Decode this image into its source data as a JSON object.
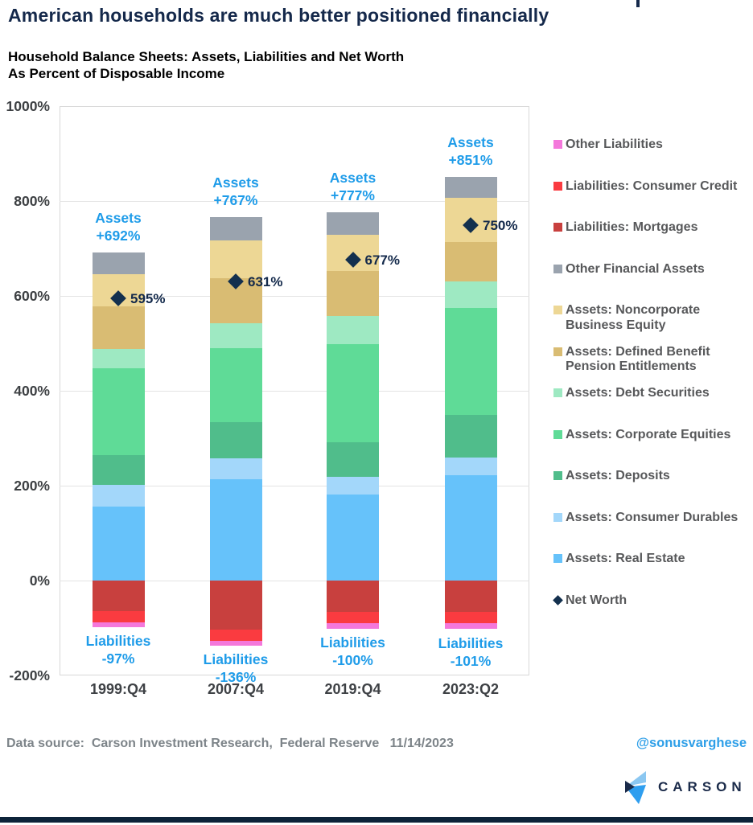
{
  "header": {
    "title": "American households are much better positioned financially",
    "subtitle_line1": "Household Balance Sheets: Assets, Liabilities and Net Worth",
    "subtitle_line2": "As Percent of Disposable Income"
  },
  "footer": {
    "source": "Data source:  Carson Investment Research,  Federal Reserve   11/14/2023",
    "handle": "@sonusvarghese",
    "logo_text": "CARSON"
  },
  "colors": {
    "real_estate": "#66C2FA",
    "consumer_durables": "#A3D7FA",
    "deposits": "#50BD8B",
    "corporate_equities": "#5FDB97",
    "debt_securities": "#9EE9C2",
    "defined_benefit": "#D9BC73",
    "noncorporate": "#EDD795",
    "other_financial": "#9AA3AE",
    "mortgages": "#C8403E",
    "consumer_credit": "#FA3B40",
    "other_liabilities": "#F478DB",
    "net_worth": "#13304E",
    "label_blue": "#1F9CE9",
    "title_navy": "#15294B",
    "axis_text": "#3D4043"
  },
  "chart_data": {
    "type": "bar",
    "stacked": true,
    "title": "Household Balance Sheets: Assets, Liabilities and Net Worth As Percent of Disposable Income",
    "xlabel": "",
    "ylabel": "Percent of Disposable Income",
    "ylim": [
      -200,
      1000
    ],
    "grid": true,
    "legend_position": "right",
    "categories": [
      "1999:Q4",
      "2007:Q4",
      "2019:Q4",
      "2023:Q2"
    ],
    "y_ticks": [
      "1000%",
      "800%",
      "600%",
      "400%",
      "200%",
      "0%",
      "-200%"
    ],
    "asset_series": [
      {
        "name": "Assets: Real Estate",
        "color": "real_estate",
        "values": [
          157,
          214,
          182,
          223
        ]
      },
      {
        "name": "Assets: Consumer Durables",
        "color": "consumer_durables",
        "values": [
          46,
          44,
          37,
          38
        ]
      },
      {
        "name": "Assets: Deposits",
        "color": "deposits",
        "values": [
          62,
          77,
          73,
          89
        ]
      },
      {
        "name": "Assets: Corporate Equities",
        "color": "corporate_equities",
        "values": [
          183,
          156,
          207,
          225
        ]
      },
      {
        "name": "Assets: Debt Securities",
        "color": "debt_securities",
        "values": [
          41,
          53,
          60,
          57
        ]
      },
      {
        "name": "Assets: Defined Benefit Pension Entitlements",
        "color": "defined_benefit",
        "values": [
          89,
          94,
          94,
          83
        ]
      },
      {
        "name": "Assets: Noncorporate Business Equity",
        "color": "noncorporate",
        "values": [
          69,
          80,
          76,
          92
        ]
      },
      {
        "name": "Other Financial Assets",
        "color": "other_financial",
        "values": [
          45,
          49,
          48,
          44
        ]
      }
    ],
    "liability_series": [
      {
        "name": "Liabilities: Mortgages",
        "color": "mortgages",
        "values": [
          64,
          104,
          66,
          66
        ]
      },
      {
        "name": "Liabilities: Consumer Credit",
        "color": "consumer_credit",
        "values": [
          24,
          23,
          23,
          24
        ]
      },
      {
        "name": "Other Liabilities",
        "color": "other_liabilities",
        "values": [
          9,
          9,
          11,
          11
        ]
      }
    ],
    "asset_totals": [
      692,
      767,
      777,
      851
    ],
    "asset_total_labels": [
      [
        "Assets",
        "+692%"
      ],
      [
        "Assets",
        "+767%"
      ],
      [
        "Assets",
        "+777%"
      ],
      [
        "Assets",
        "+851%"
      ]
    ],
    "liability_totals": [
      97,
      136,
      100,
      101
    ],
    "liability_total_labels": [
      [
        "Liabilities",
        "-97%"
      ],
      [
        "Liabilities",
        "-136%"
      ],
      [
        "Liabilities",
        "-100%"
      ],
      [
        "Liabilities",
        "-101%"
      ]
    ],
    "net_worth": {
      "name": "Net Worth",
      "values": [
        595,
        631,
        677,
        750
      ],
      "labels": [
        "595%",
        "631%",
        "677%",
        "750%"
      ]
    },
    "legend": [
      {
        "lines": [
          "Other Liabilities"
        ],
        "color": "other_liabilities",
        "marker": "square"
      },
      {
        "lines": [
          "Liabilities: Consumer Credit"
        ],
        "color": "consumer_credit",
        "marker": "square"
      },
      {
        "lines": [
          "Liabilities: Mortgages"
        ],
        "color": "mortgages",
        "marker": "square"
      },
      {
        "lines": [
          "Other Financial Assets"
        ],
        "color": "other_financial",
        "marker": "square"
      },
      {
        "lines": [
          "Assets: Noncorporate",
          "Business Equity"
        ],
        "color": "noncorporate",
        "marker": "square"
      },
      {
        "lines": [
          "Assets: Defined Benefit",
          "Pension Entitlements"
        ],
        "color": "defined_benefit",
        "marker": "square"
      },
      {
        "lines": [
          "Assets: Debt Securities"
        ],
        "color": "debt_securities",
        "marker": "square"
      },
      {
        "lines": [
          "Assets: Corporate Equities"
        ],
        "color": "corporate_equities",
        "marker": "square"
      },
      {
        "lines": [
          "Assets: Deposits"
        ],
        "color": "deposits",
        "marker": "square"
      },
      {
        "lines": [
          "Assets: Consumer Durables"
        ],
        "color": "consumer_durables",
        "marker": "square"
      },
      {
        "lines": [
          "Assets: Real Estate"
        ],
        "color": "real_estate",
        "marker": "square"
      },
      {
        "lines": [
          "Net Worth"
        ],
        "color": "net_worth",
        "marker": "diamond"
      }
    ]
  }
}
